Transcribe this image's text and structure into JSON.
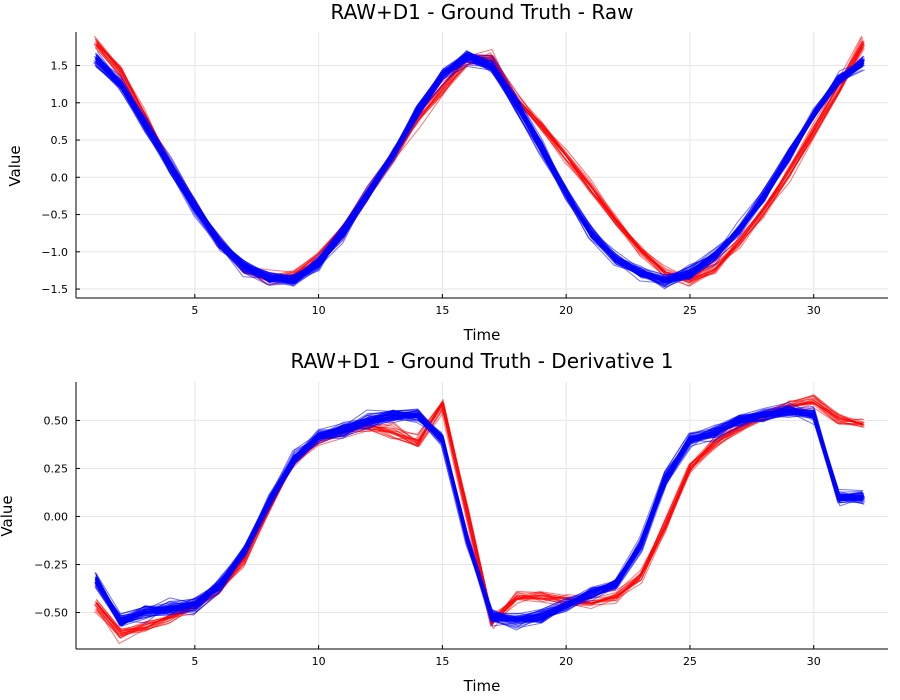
{
  "chart_data": [
    {
      "type": "line",
      "title": "RAW+D1 - Ground Truth - Raw",
      "xlabel": "Time",
      "ylabel": "Value",
      "xlim": [
        0.2,
        33
      ],
      "ylim": [
        -1.62,
        1.95
      ],
      "x_ticks": [
        5,
        10,
        15,
        20,
        25,
        30
      ],
      "x_tick_labels": [
        "5",
        "10",
        "15",
        "20",
        "25",
        "30"
      ],
      "y_ticks": [
        -1.5,
        -1.0,
        -0.5,
        0.0,
        0.5,
        1.0,
        1.5
      ],
      "y_tick_labels": [
        "−1.5",
        "−1.0",
        "−0.5",
        "0.0",
        "0.5",
        "1.0",
        "1.5"
      ],
      "grid": true,
      "legend": "none",
      "x": [
        1,
        2,
        3,
        4,
        5,
        6,
        7,
        8,
        9,
        10,
        11,
        12,
        13,
        14,
        15,
        16,
        17,
        18,
        19,
        20,
        21,
        22,
        23,
        24,
        25,
        26,
        27,
        28,
        29,
        30,
        31,
        32
      ],
      "series": [
        {
          "color": "#ff0000",
          "count": 20,
          "values": [
            1.8,
            1.42,
            0.8,
            0.18,
            -0.38,
            -0.88,
            -1.22,
            -1.37,
            -1.32,
            -1.08,
            -0.7,
            -0.22,
            0.28,
            0.78,
            1.18,
            1.58,
            1.6,
            1.05,
            0.68,
            0.28,
            -0.15,
            -0.58,
            -0.98,
            -1.28,
            -1.38,
            -1.22,
            -0.88,
            -0.45,
            0.05,
            0.62,
            1.18,
            1.8
          ]
        },
        {
          "color": "#0000ff",
          "count": 60,
          "values": [
            1.58,
            1.25,
            0.72,
            0.15,
            -0.4,
            -0.88,
            -1.2,
            -1.35,
            -1.38,
            -1.15,
            -0.72,
            -0.22,
            0.3,
            0.88,
            1.38,
            1.62,
            1.5,
            0.98,
            0.4,
            -0.22,
            -0.75,
            -1.1,
            -1.28,
            -1.38,
            -1.28,
            -1.05,
            -0.7,
            -0.25,
            0.3,
            0.85,
            1.3,
            1.55
          ]
        }
      ]
    },
    {
      "type": "line",
      "title": "RAW+D1 - Ground Truth - Derivative 1",
      "xlabel": "Time",
      "ylabel": "Value",
      "xlim": [
        0.2,
        33
      ],
      "ylim": [
        -0.69,
        0.7
      ],
      "x_ticks": [
        5,
        10,
        15,
        20,
        25,
        30
      ],
      "x_tick_labels": [
        "5",
        "10",
        "15",
        "20",
        "25",
        "30"
      ],
      "y_ticks": [
        -0.5,
        -0.25,
        0.0,
        0.25,
        0.5
      ],
      "y_tick_labels": [
        "−0.50",
        "−0.25",
        "0.00",
        "0.25",
        "0.50"
      ],
      "grid": true,
      "legend": "none",
      "x": [
        1,
        2,
        3,
        4,
        5,
        6,
        7,
        8,
        9,
        10,
        11,
        12,
        13,
        14,
        15,
        16,
        17,
        18,
        19,
        20,
        21,
        22,
        23,
        24,
        25,
        26,
        27,
        28,
        29,
        30,
        31,
        32
      ],
      "series": [
        {
          "color": "#ff0000",
          "count": 20,
          "values": [
            -0.46,
            -0.61,
            -0.58,
            -0.53,
            -0.47,
            -0.38,
            -0.22,
            0.05,
            0.28,
            0.4,
            0.44,
            0.46,
            0.44,
            0.38,
            0.58,
            0.02,
            -0.55,
            -0.42,
            -0.42,
            -0.44,
            -0.45,
            -0.42,
            -0.32,
            -0.05,
            0.25,
            0.38,
            0.46,
            0.52,
            0.57,
            0.6,
            0.5,
            0.48
          ]
        },
        {
          "color": "#0000ff",
          "count": 60,
          "values": [
            -0.33,
            -0.54,
            -0.5,
            -0.48,
            -0.46,
            -0.36,
            -0.18,
            0.08,
            0.3,
            0.42,
            0.45,
            0.5,
            0.53,
            0.53,
            0.4,
            -0.12,
            -0.52,
            -0.54,
            -0.52,
            -0.46,
            -0.4,
            -0.35,
            -0.15,
            0.2,
            0.4,
            0.44,
            0.5,
            0.53,
            0.55,
            0.53,
            0.1,
            0.1
          ]
        }
      ]
    }
  ]
}
